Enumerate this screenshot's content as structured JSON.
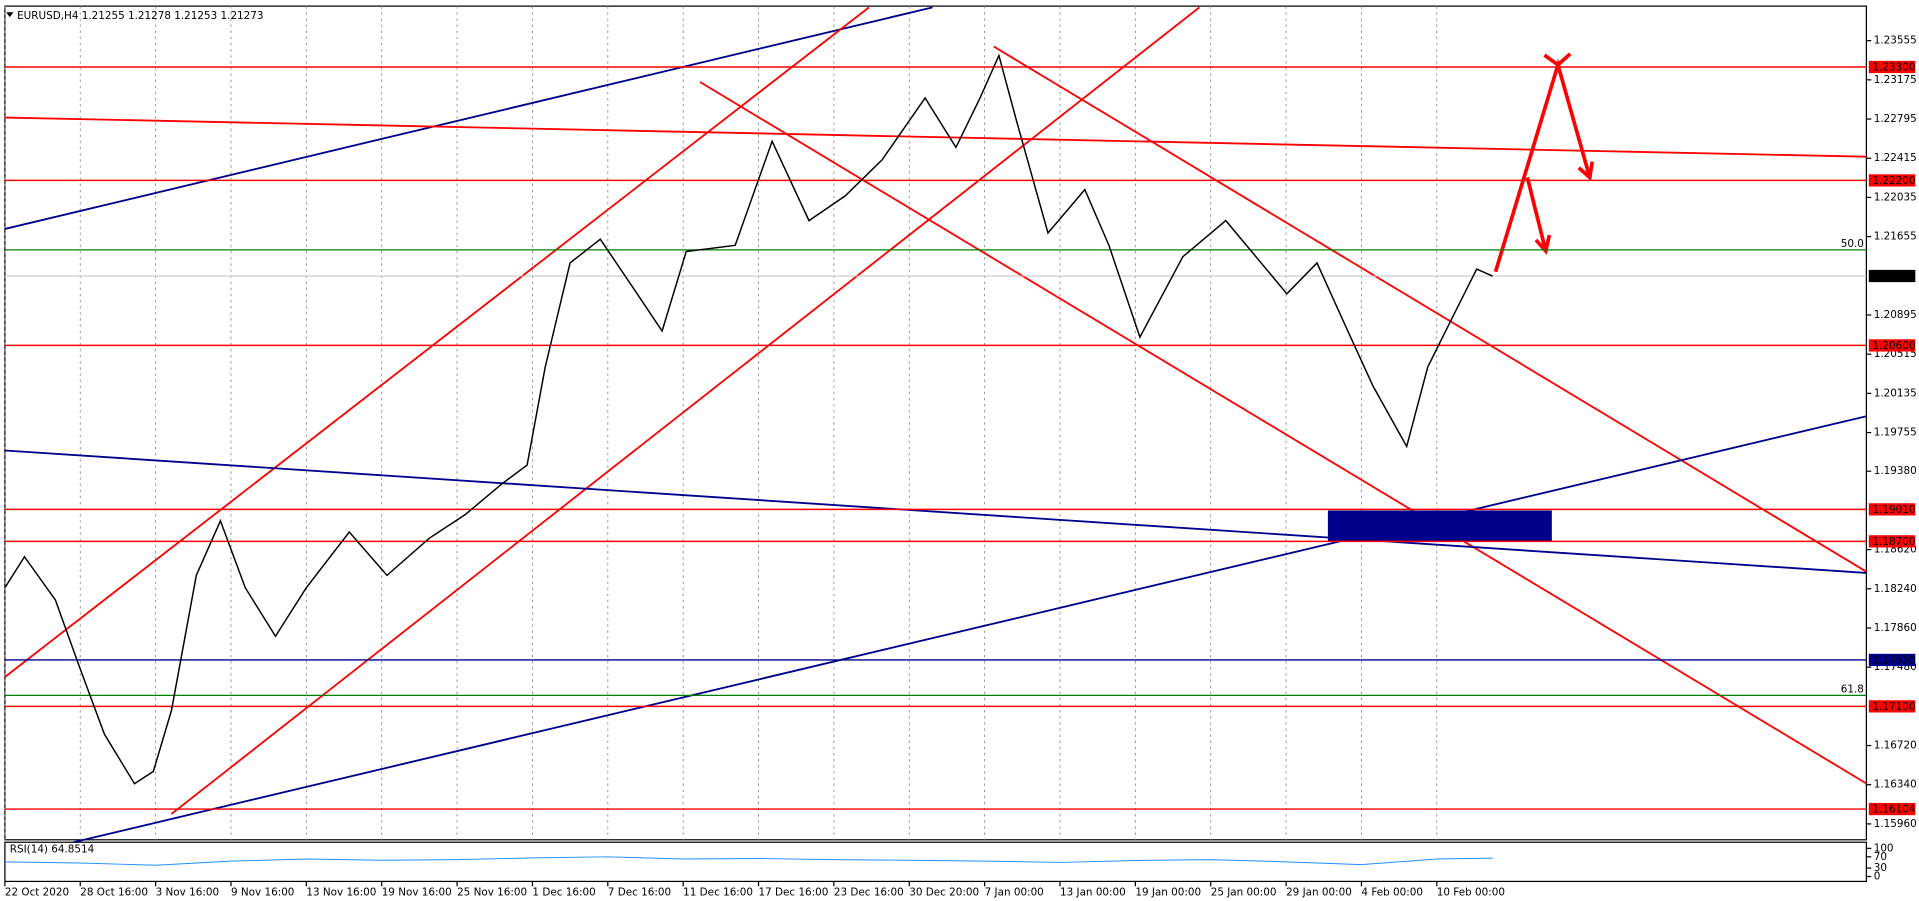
{
  "chart_data": [
    {
      "type": "line",
      "title": "EURUSD,H4  1.21255 1.21278 1.21253 1.21273",
      "color": "#000000",
      "x": [
        0,
        0.26,
        0.67,
        0.99,
        1.32,
        1.72,
        1.97,
        2.21,
        2.54,
        2.86,
        3.19,
        3.59,
        4.0,
        4.57,
        5.07,
        5.63,
        6.11,
        6.6,
        6.93,
        7.17,
        7.5,
        7.9,
        8.39,
        8.72,
        9.04,
        9.69,
        10.18,
        10.67,
        11.15,
        11.64,
        12.21,
        12.62,
        12.94,
        13.19,
        13.43,
        13.84,
        14.33,
        14.65,
        15.06,
        15.63,
        16.2,
        16.6,
        17.01,
        17.41,
        17.82,
        18.15,
        18.6,
        18.88,
        19.2,
        19.53,
        19.74
      ],
      "values": [
        1.1825,
        1.1855,
        1.1813,
        1.1748,
        1.1683,
        1.1635,
        1.1647,
        1.1706,
        1.1837,
        1.189,
        1.1825,
        1.1778,
        1.1825,
        1.1879,
        1.1837,
        1.1873,
        1.1896,
        1.1926,
        1.1944,
        1.2039,
        1.214,
        1.2163,
        1.211,
        1.2074,
        1.2151,
        1.2157,
        1.2258,
        1.2181,
        1.2205,
        1.224,
        1.23,
        1.2252,
        1.23,
        1.2341,
        1.2276,
        1.2169,
        1.2211,
        1.2157,
        1.2068,
        1.2146,
        1.2181,
        1.2146,
        1.211,
        1.214,
        1.2074,
        1.2021,
        1.1962,
        1.2039,
        1.2086,
        1.2134,
        1.21273
      ],
      "xlim": [
        0,
        24.7
      ],
      "xticks": [
        {
          "value": 0,
          "label": "22 Oct 2020"
        },
        {
          "value": 1,
          "label": "28 Oct 16:00"
        },
        {
          "value": 2,
          "label": "3 Nov 16:00"
        },
        {
          "value": 3,
          "label": "9 Nov 16:00"
        },
        {
          "value": 4,
          "label": "13 Nov 16:00"
        },
        {
          "value": 5,
          "label": "19 Nov 16:00"
        },
        {
          "value": 6,
          "label": "25 Nov 16:00"
        },
        {
          "value": 7,
          "label": "1 Dec 16:00"
        },
        {
          "value": 8,
          "label": "7 Dec 16:00"
        },
        {
          "value": 9,
          "label": "11 Dec 16:00"
        },
        {
          "value": 10,
          "label": "17 Dec 16:00"
        },
        {
          "value": 11,
          "label": "23 Dec 16:00"
        },
        {
          "value": 12,
          "label": "30 Dec 20:00"
        },
        {
          "value": 13,
          "label": "7 Jan 00:00"
        },
        {
          "value": 14,
          "label": "13 Jan 00:00"
        },
        {
          "value": 15,
          "label": "19 Jan 00:00"
        },
        {
          "value": 16,
          "label": "25 Jan 00:00"
        },
        {
          "value": 17,
          "label": "29 Jan 00:00"
        },
        {
          "value": 18,
          "label": "4 Feb 00:00"
        },
        {
          "value": 19,
          "label": "10 Feb 00:00"
        }
      ],
      "ylim": [
        1.15806,
        1.2389
      ],
      "yticks": [
        1.23555,
        1.23175,
        1.22795,
        1.22415,
        1.22035,
        1.21655,
        1.20895,
        1.20515,
        1.20135,
        1.19755,
        {
          "value": 1.1938,
          "label": "1.19380"
        },
        {
          "value": 1.1862,
          "label": "1.18620"
        },
        {
          "value": 1.1824,
          "label": "1.18240"
        },
        {
          "value": 1.1786,
          "label": "1.17860"
        },
        {
          "value": 1.1748,
          "label": "1.17480"
        },
        {
          "value": 1.1672,
          "label": "1.16720"
        },
        {
          "value": 1.1634,
          "label": "1.16340"
        },
        {
          "value": 1.1596,
          "label": "1.15960"
        }
      ],
      "grid": "x",
      "levels": [
        {
          "value": 1.233,
          "label": "1.23300",
          "color": "#ff0000"
        },
        {
          "value": 1.222,
          "label": "1.22200",
          "color": "#ff0000"
        },
        {
          "value": 1.206,
          "label": "1.20600",
          "color": "#ff0000"
        },
        {
          "value": 1.1901,
          "label": "1.19010",
          "color": "#ff0000"
        },
        {
          "value": 1.187,
          "label": "1.18700",
          "color": "#ff0000"
        },
        {
          "value": 1.1755,
          "label": "1.17550",
          "color": "#00008b"
        },
        {
          "value": 1.171,
          "label": "1.17100",
          "color": "#ff0000"
        },
        {
          "value": 1.16104,
          "label": "1.16104",
          "color": "#ff0000"
        }
      ],
      "fib_levels": [
        {
          "value": 1.21526,
          "label": "50.0"
        },
        {
          "value": 1.17206,
          "label": "61.8"
        }
      ],
      "fib_color": "#008000",
      "current": {
        "value": 1.21273,
        "label": "1.21273"
      }
    },
    {
      "type": "line",
      "title": "RSI(14) 64.8514",
      "color": "#1e90ff",
      "x": [
        0,
        1,
        2,
        3,
        4,
        5,
        6,
        7,
        8,
        9,
        10,
        11,
        12,
        13,
        14,
        15,
        16,
        17,
        18,
        19,
        19.74
      ],
      "values": [
        52,
        48,
        40,
        55,
        62,
        58,
        60,
        66,
        70,
        62,
        64,
        60,
        58,
        55,
        50,
        57,
        60,
        52,
        42,
        62,
        65
      ],
      "xlim": [
        0,
        24.7
      ],
      "ylim": [
        0,
        100
      ],
      "yticks": [
        0,
        30,
        70,
        100
      ]
    }
  ]
}
